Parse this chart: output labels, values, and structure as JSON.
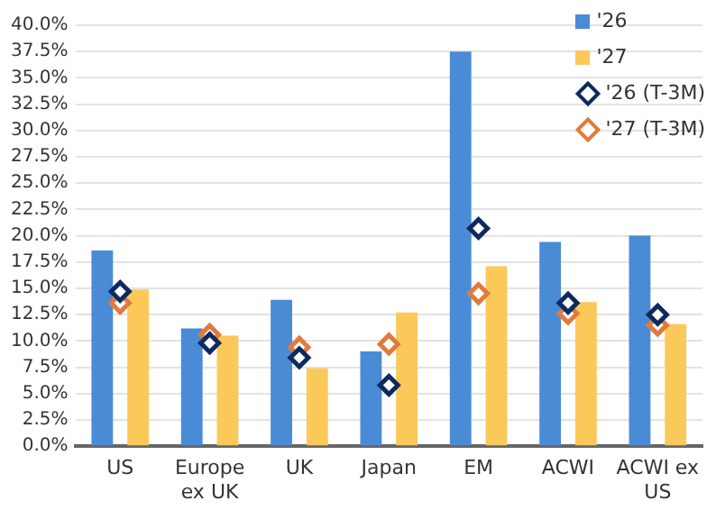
{
  "chart_data": {
    "type": "bar",
    "categories": [
      "US",
      "Europe ex UK",
      "UK",
      "Japan",
      "EM",
      "ACWI",
      "ACWI ex US"
    ],
    "series": [
      {
        "name": "'26",
        "color": "#4a8bd6",
        "values": [
          18.6,
          11.2,
          13.9,
          9.0,
          37.5,
          19.4,
          20.0
        ]
      },
      {
        "name": "'27",
        "color": "#fbc85a",
        "values": [
          14.9,
          10.5,
          7.4,
          12.7,
          17.1,
          13.7,
          11.6
        ]
      },
      {
        "name": "'26 (T-3M)",
        "type": "scatter",
        "color": "#0d2a5e",
        "x": [
          "US",
          "Europe ex UK",
          "UK",
          "Japan",
          "EM",
          "ACWI",
          "ACWI ex US"
        ],
        "values": [
          14.7,
          9.8,
          8.4,
          5.8,
          20.7,
          13.6,
          12.5
        ]
      },
      {
        "name": "'27 (T-3M)",
        "type": "scatter",
        "color": "#e07b3c",
        "x": [
          "US",
          "Europe ex UK",
          "UK",
          "Japan",
          "EM",
          "ACWI",
          "ACWI ex US"
        ],
        "values": [
          13.6,
          10.6,
          9.4,
          9.7,
          14.5,
          12.6,
          11.5
        ]
      }
    ],
    "ylim": [
      0,
      40
    ],
    "yticks": [
      {
        "value": 0,
        "label": "0.0%"
      },
      {
        "value": 2.5,
        "label": "2.5%"
      },
      {
        "value": 5,
        "label": "5.0%"
      },
      {
        "value": 7.5,
        "label": "7.5%"
      },
      {
        "value": 10,
        "label": "10.0%"
      },
      {
        "value": 12.5,
        "label": "12.5%"
      },
      {
        "value": 15,
        "label": "15.0%"
      },
      {
        "value": 17.5,
        "label": "17.5%"
      },
      {
        "value": 20,
        "label": "20.0%"
      },
      {
        "value": 22.5,
        "label": "22.5%"
      },
      {
        "value": 25,
        "label": "25.0%"
      },
      {
        "value": 27.5,
        "label": "27.5%"
      },
      {
        "value": 30,
        "label": "30.0%"
      },
      {
        "value": 32.5,
        "label": "32.5%"
      },
      {
        "value": 35,
        "label": "35.0%"
      },
      {
        "value": 37.5,
        "label": "37.5%"
      },
      {
        "value": 40,
        "label": "40.0%"
      }
    ],
    "grid": "y",
    "legend": "top right",
    "marker": "diamond"
  }
}
